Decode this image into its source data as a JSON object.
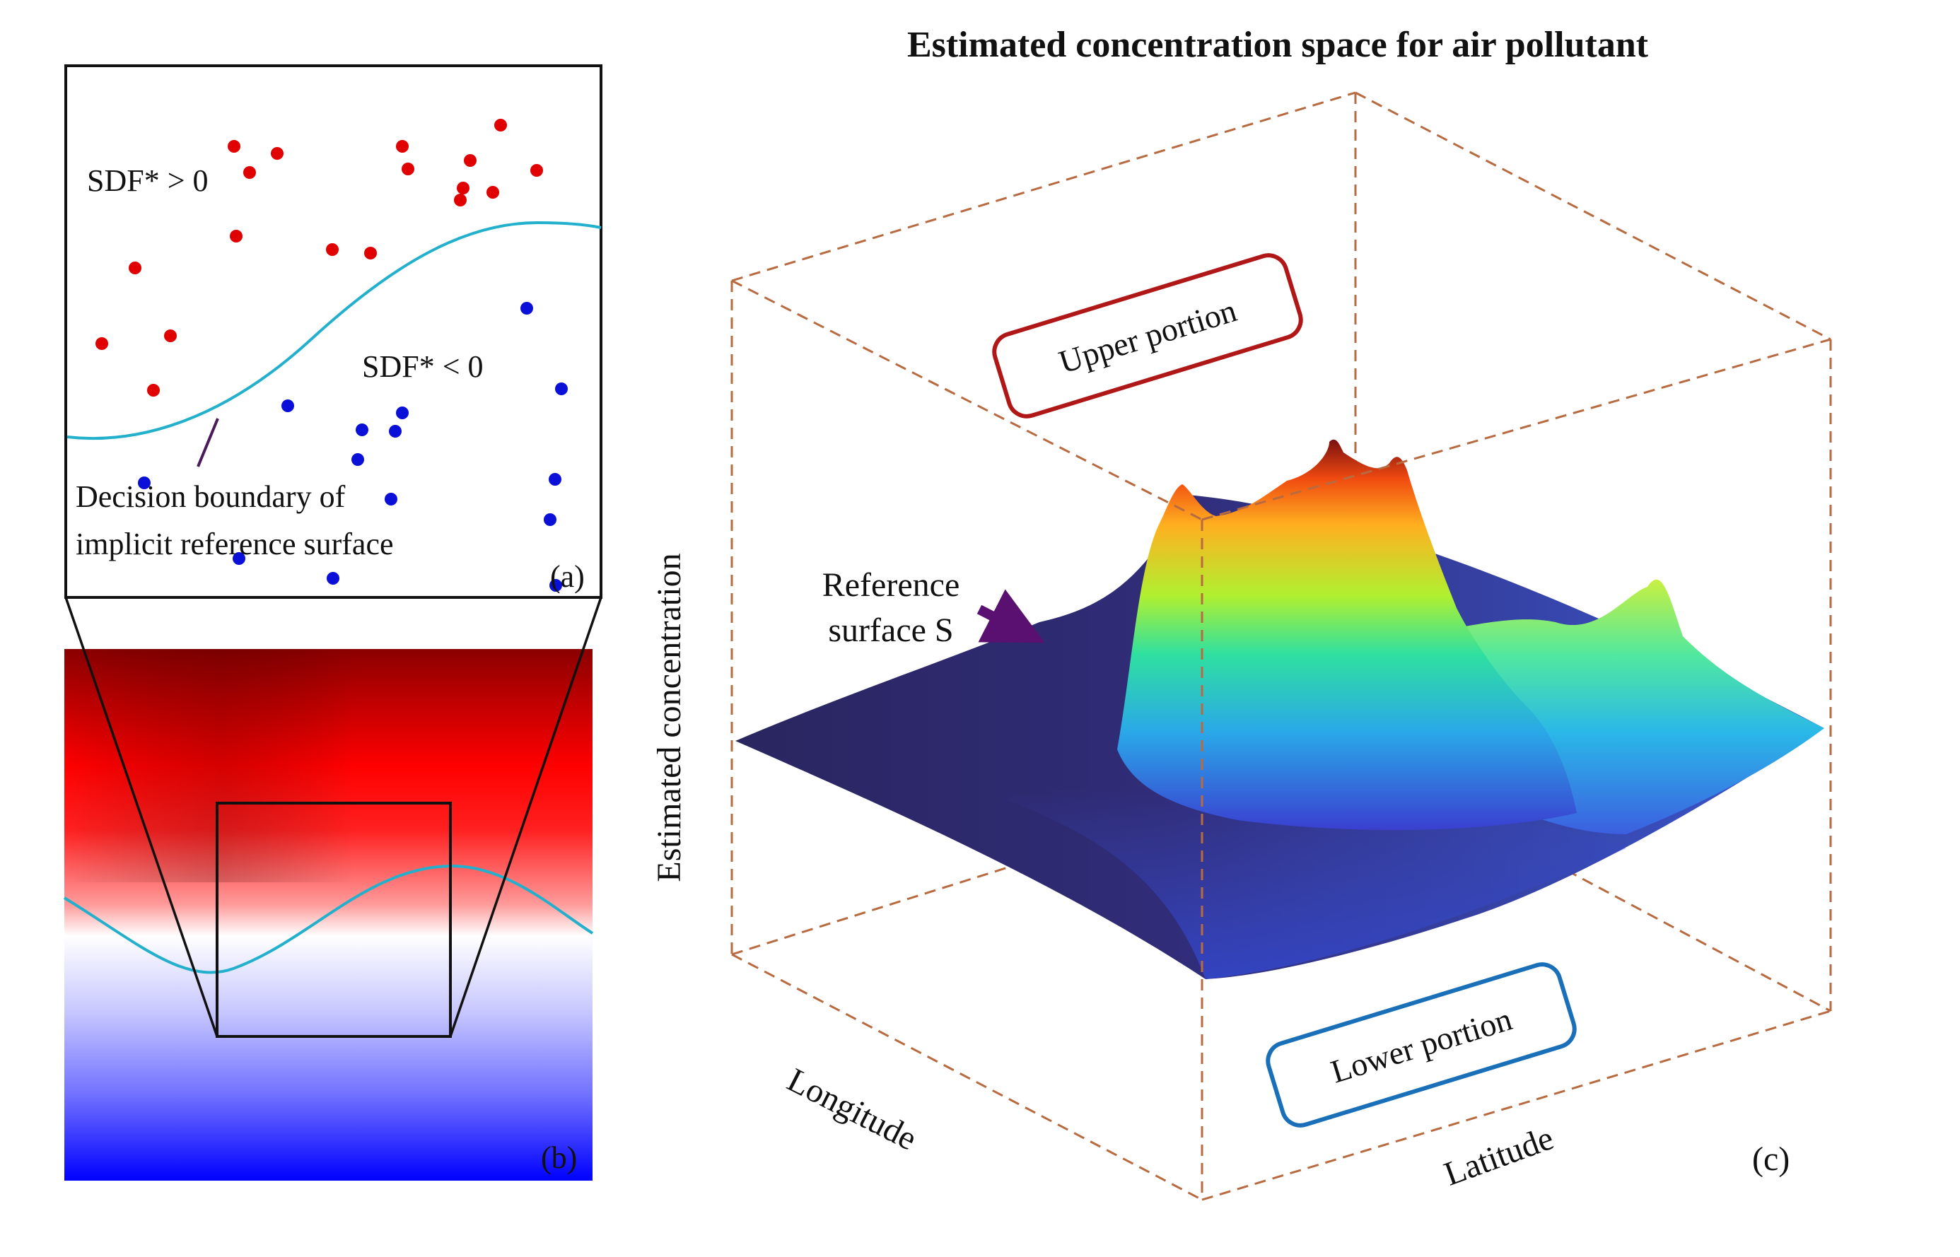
{
  "title": "Estimated concentration space for air pollutant",
  "panel_a": {
    "positive_label": "SDF* > 0",
    "negative_label": "SDF* < 0",
    "boundary_label_line1": "Decision boundary of",
    "boundary_label_line2": "implicit reference surface",
    "tag": "(a)",
    "positive_color": "#e00000",
    "negative_color": "#0a10d8",
    "boundary_color": "#22b0cc"
  },
  "panel_b": {
    "tag": "(b)",
    "top_color": "#8b0000",
    "mid_color": "#ff0000",
    "white_color": "#ffffff",
    "bottom_color": "#0000ff"
  },
  "panel_c": {
    "reference_label_line1": "Reference",
    "reference_label_line2": "surface S",
    "upper_label": "Upper portion",
    "lower_label": "Lower portion",
    "z_axis_label": "Estimated concentration",
    "x_axis_label": "Longitude",
    "y_axis_label": "Latitude",
    "tag": "(c)",
    "upper_box_color": "#b01818",
    "lower_box_color": "#1a70b8",
    "cube_edge_color": "#b86a40",
    "arrow_color": "#5a1070"
  }
}
